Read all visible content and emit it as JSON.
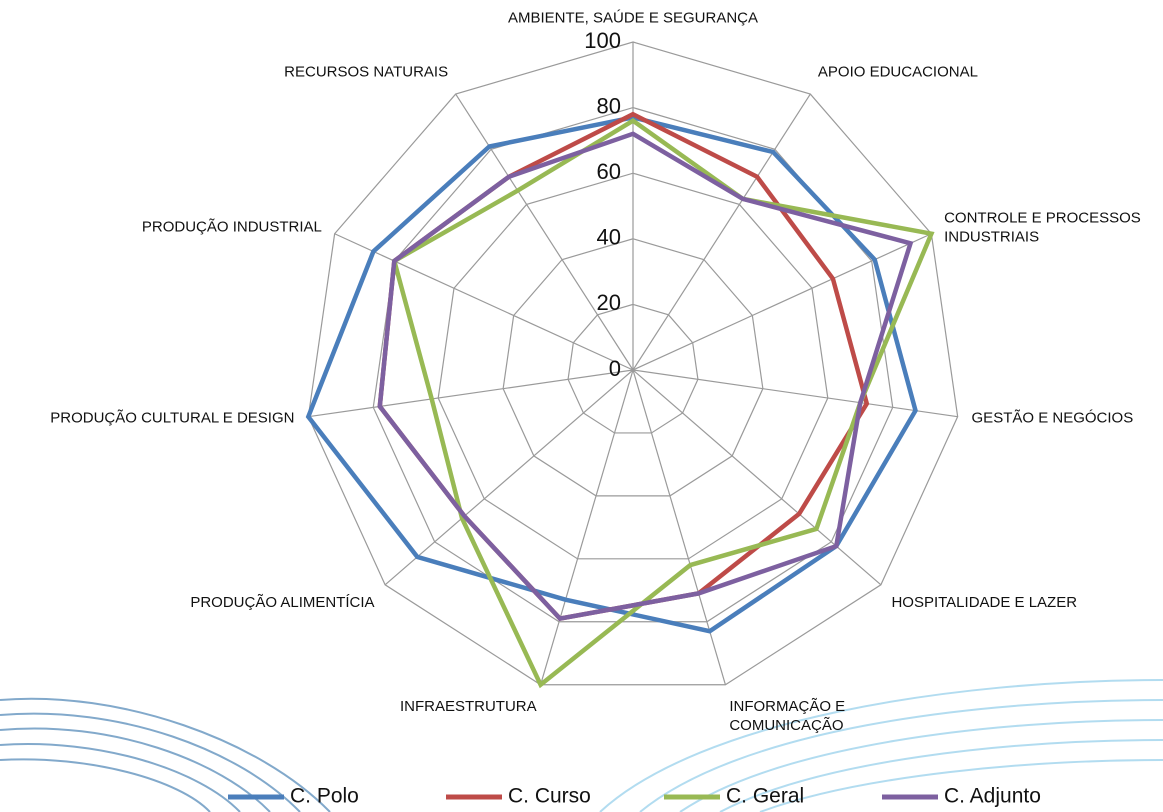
{
  "chart_data": {
    "type": "radar",
    "categories": [
      "AMBIENTE, SAÚDE E SEGURANÇA",
      "APOIO EDUCACIONAL",
      "CONTROLE E PROCESSOS INDUSTRIAIS",
      "GESTÃO E NEGÓCIOS",
      "HOSPITALIDADE E LAZER",
      "INFORMAÇÃO E COMUNICAÇÃO",
      "INFRAESTRUTURA",
      "PRODUÇÃO ALIMENTÍCIA",
      "PRODUÇÃO CULTURAL E DESIGN",
      "PRODUÇÃO INDUSTRIAL",
      "RECURSOS NATURAIS"
    ],
    "series": [
      {
        "name": "C. Polo",
        "color": "#4a7ebb",
        "values": [
          77,
          79,
          81,
          87,
          82,
          83,
          73,
          87,
          100,
          87,
          81
        ]
      },
      {
        "name": "C. Curso",
        "color": "#be4b48",
        "values": [
          78,
          70,
          67,
          72,
          67,
          71,
          79,
          68,
          78,
          80,
          70
        ]
      },
      {
        "name": "C. Geral",
        "color": "#98b954",
        "values": [
          76,
          62,
          100,
          70,
          74,
          62,
          100,
          69,
          62,
          80,
          65
        ]
      },
      {
        "name": "C. Adjunto",
        "color": "#7d60a0",
        "values": [
          72,
          62,
          93,
          70,
          82,
          71,
          79,
          68,
          78,
          80,
          70
        ]
      }
    ],
    "ylim": [
      0,
      100
    ],
    "yticks": [
      0,
      20,
      40,
      60,
      80,
      100
    ],
    "grid": true,
    "legend": "bottom"
  }
}
